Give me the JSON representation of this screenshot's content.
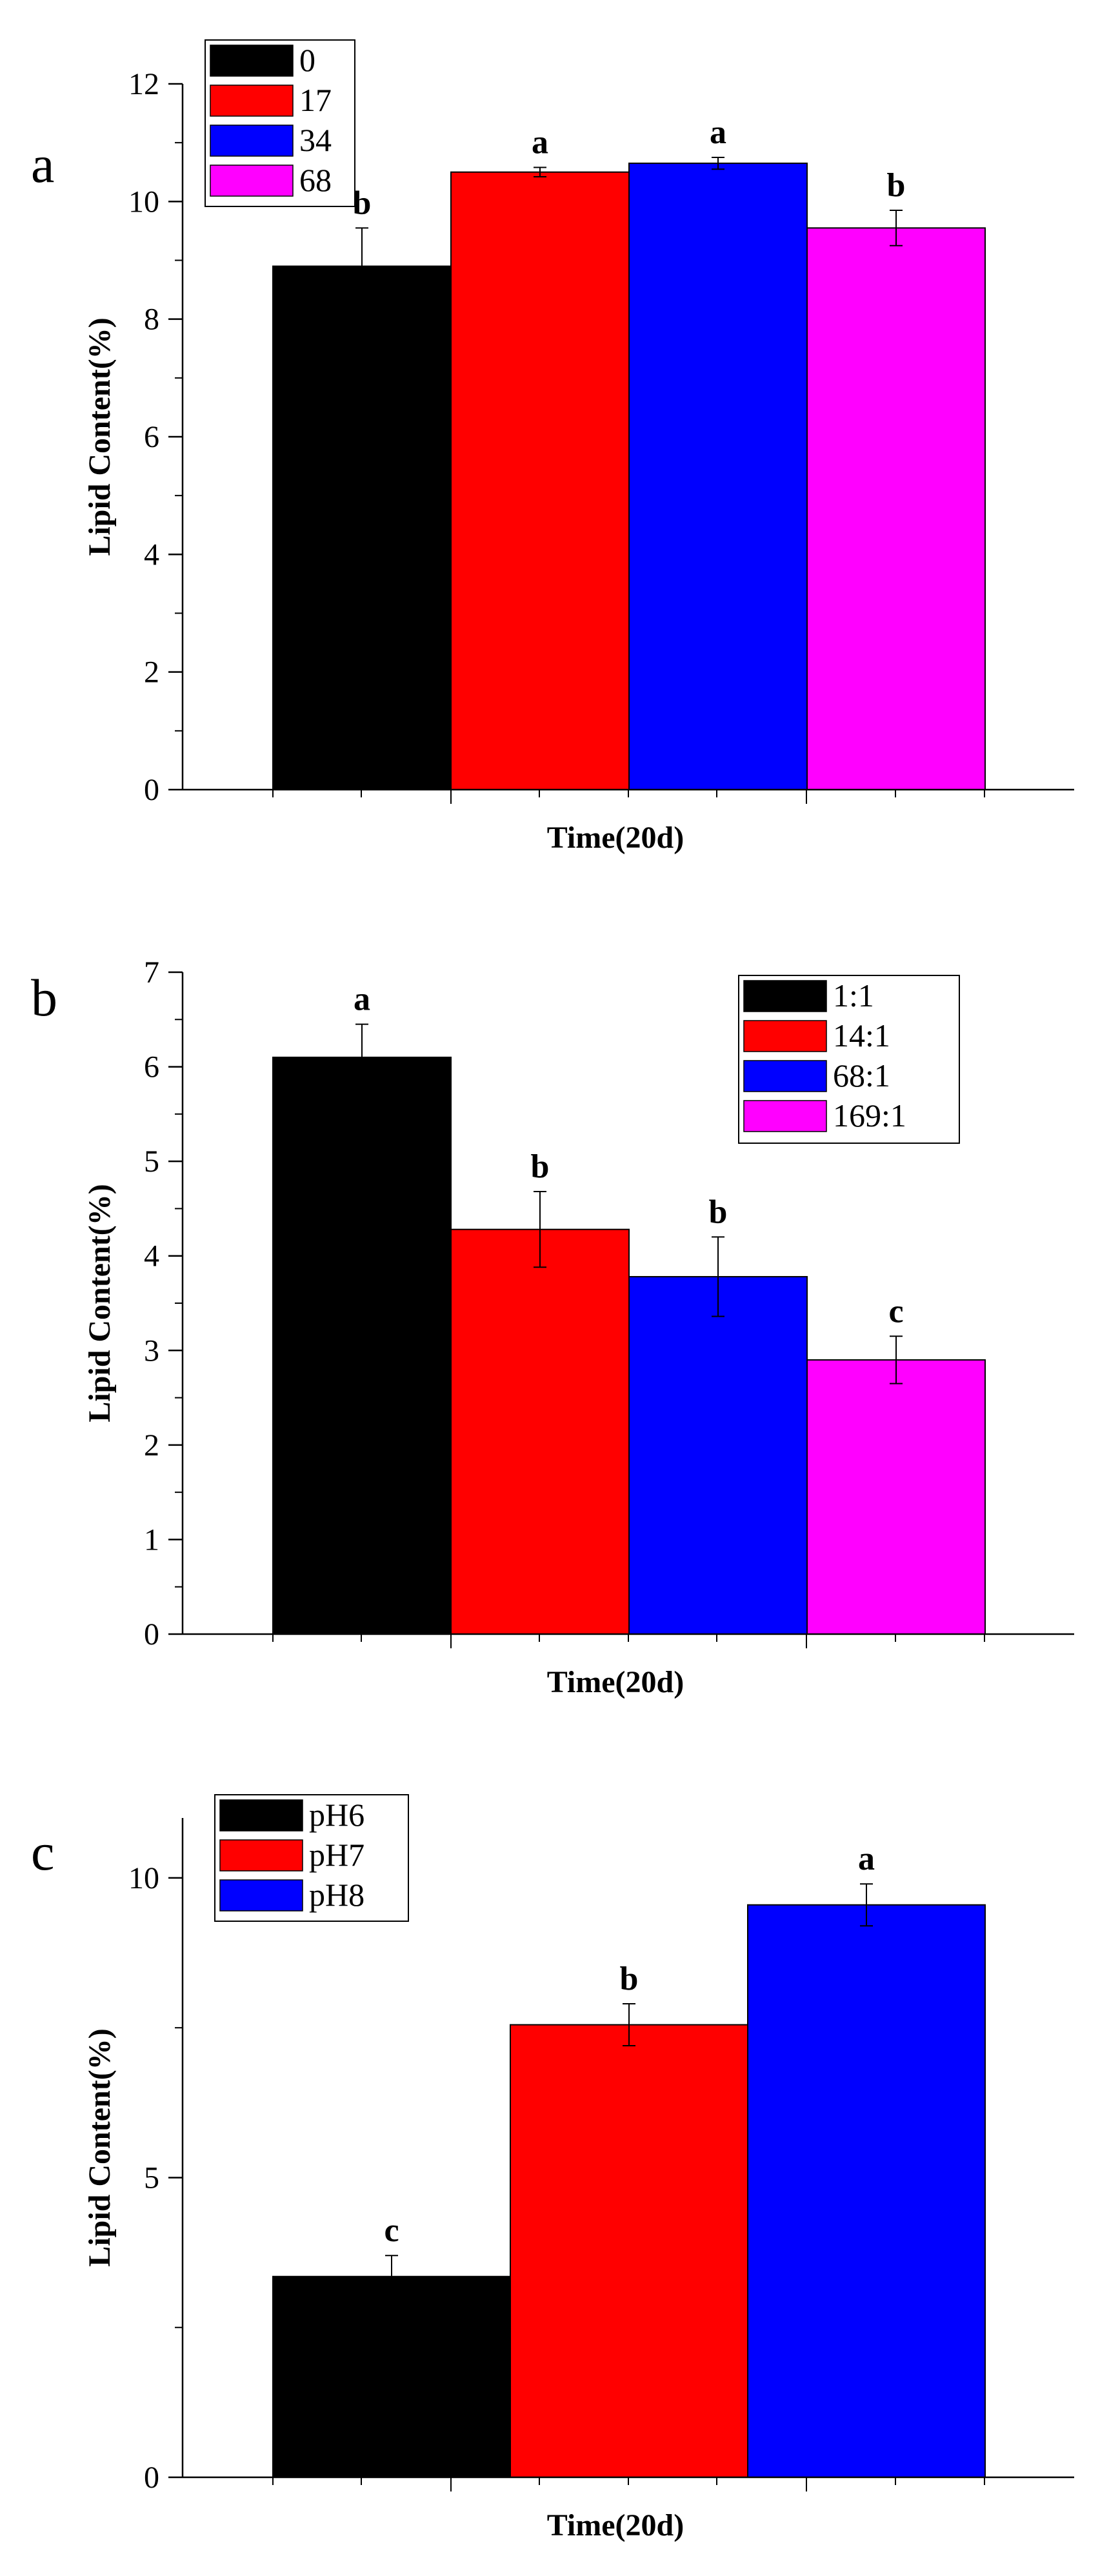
{
  "chart_data": [
    {
      "type": "bar",
      "panel_label": "a",
      "title": "",
      "xlabel": "Time(20d)",
      "ylabel": "Lipid Content(%)",
      "ylim": [
        0,
        12
      ],
      "yticks": [
        0,
        2,
        4,
        6,
        8,
        10,
        12
      ],
      "legend_position": "top-left",
      "series": [
        {
          "name": "0",
          "value": 8.9,
          "error": 0.65,
          "sig": "b",
          "color": "#000000"
        },
        {
          "name": "17",
          "value": 10.5,
          "error": 0.08,
          "sig": "a",
          "color": "#ff0000"
        },
        {
          "name": "34",
          "value": 10.65,
          "error": 0.1,
          "sig": "a",
          "color": "#0000ff"
        },
        {
          "name": "68",
          "value": 9.55,
          "error": 0.3,
          "sig": "b",
          "color": "#ff00ff"
        }
      ]
    },
    {
      "type": "bar",
      "panel_label": "b",
      "title": "",
      "xlabel": "Time(20d)",
      "ylabel": "Lipid Content(%)",
      "ylim": [
        0,
        7
      ],
      "yticks": [
        0,
        1,
        2,
        3,
        4,
        5,
        6,
        7
      ],
      "legend_position": "top-right",
      "series": [
        {
          "name": "1:1",
          "value": 6.1,
          "error": 0.35,
          "sig": "a",
          "color": "#000000"
        },
        {
          "name": "14:1",
          "value": 4.28,
          "error": 0.4,
          "sig": "b",
          "color": "#ff0000"
        },
        {
          "name": "68:1",
          "value": 3.78,
          "error": 0.42,
          "sig": "b",
          "color": "#0000ff"
        },
        {
          "name": "169:1",
          "value": 2.9,
          "error": 0.25,
          "sig": "c",
          "color": "#ff00ff"
        }
      ]
    },
    {
      "type": "bar",
      "panel_label": "c",
      "title": "",
      "xlabel": "Time(20d)",
      "ylabel": "Lipid Content(%)",
      "ylim": [
        0,
        11
      ],
      "yticks": [
        0,
        5,
        10
      ],
      "legend_position": "top-left",
      "series": [
        {
          "name": "pH6",
          "value": 3.35,
          "error": 0.35,
          "sig": "c",
          "color": "#000000"
        },
        {
          "name": "pH7",
          "value": 7.55,
          "error": 0.35,
          "sig": "b",
          "color": "#ff0000"
        },
        {
          "name": "pH8",
          "value": 9.55,
          "error": 0.35,
          "sig": "a",
          "color": "#0000ff"
        }
      ]
    }
  ]
}
